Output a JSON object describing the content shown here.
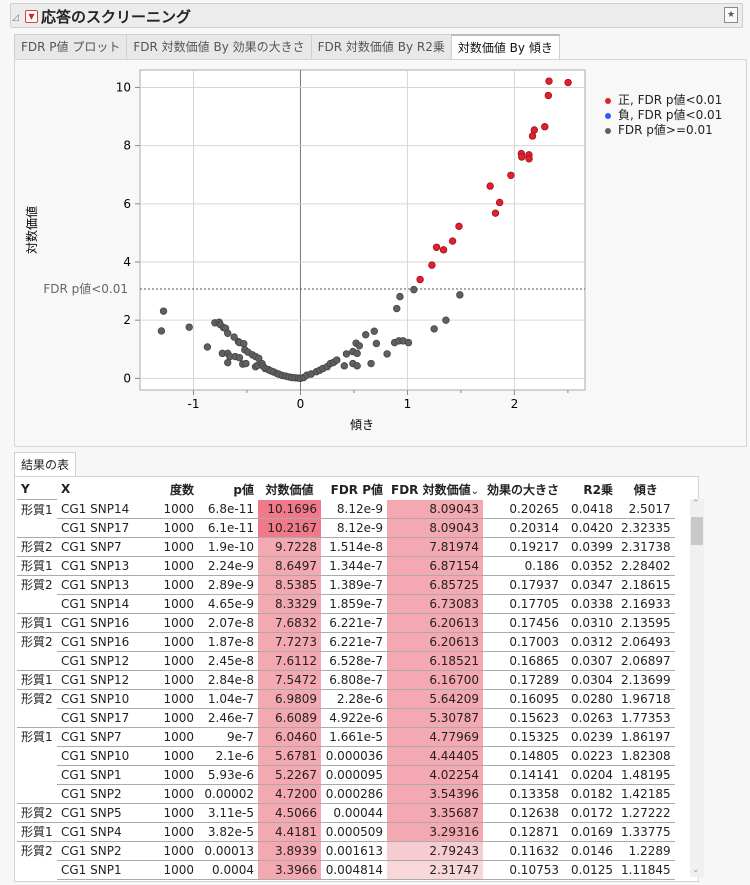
{
  "outline": {
    "title": "応答のスクリーニング",
    "collapse_icon": "triangle-down",
    "menu_icon": "red-triangle"
  },
  "tabs": [
    {
      "label": "FDR P値 プロット"
    },
    {
      "label": "FDR 対数価値 By 効果の大きさ"
    },
    {
      "label": "FDR 対数価値 By R2乗"
    },
    {
      "label": "対数価値 By 傾き",
      "active": true
    }
  ],
  "chart_data": {
    "type": "scatter",
    "xlabel": "傾き",
    "ylabel": "対数価値",
    "xlim": [
      -1.5,
      2.66
    ],
    "ylim": [
      -0.4,
      10.6
    ],
    "xticks": [
      -1,
      0,
      1,
      2
    ],
    "yticks": [
      0,
      2,
      4,
      6,
      8,
      10
    ],
    "grid": true,
    "reference_line": {
      "y": 3.07,
      "label": "FDR p値<0.01"
    },
    "legend_position": "right",
    "series": [
      {
        "name": "正, FDR p値<0.01",
        "color": "#e0202f",
        "points": [
          [
            2.5017,
            10.1696
          ],
          [
            2.32335,
            10.2167
          ],
          [
            2.31738,
            9.7228
          ],
          [
            2.28402,
            8.6497
          ],
          [
            2.18615,
            8.5385
          ],
          [
            2.16933,
            8.3329
          ],
          [
            2.13595,
            7.6832
          ],
          [
            2.06493,
            7.7273
          ],
          [
            2.06897,
            7.6112
          ],
          [
            2.13699,
            7.5472
          ],
          [
            1.96718,
            6.9809
          ],
          [
            1.77353,
            6.6089
          ],
          [
            1.86197,
            6.046
          ],
          [
            1.82308,
            5.6781
          ],
          [
            1.48195,
            5.2267
          ],
          [
            1.42185,
            4.72
          ],
          [
            1.27222,
            4.5066
          ],
          [
            1.33775,
            4.4181
          ],
          [
            1.2289,
            3.8939
          ],
          [
            1.11845,
            3.3966
          ]
        ]
      },
      {
        "name": "負, FDR p値<0.01",
        "color": "#2a5cf0",
        "points": []
      },
      {
        "name": "FDR p値>=0.01",
        "color": "#606060",
        "points": [
          [
            -1.3,
            1.63
          ],
          [
            -1.28,
            2.31
          ],
          [
            -1.04,
            1.76
          ],
          [
            -0.87,
            1.08
          ],
          [
            -0.8,
            1.91
          ],
          [
            -0.76,
            1.93
          ],
          [
            -0.75,
            1.85
          ],
          [
            -0.72,
            1.75
          ],
          [
            -0.7,
            1.72
          ],
          [
            -0.68,
            1.55
          ],
          [
            -0.62,
            1.42
          ],
          [
            -0.58,
            1.26
          ],
          [
            -0.57,
            1.23
          ],
          [
            -0.53,
            1.19
          ],
          [
            -0.73,
            0.86
          ],
          [
            -0.68,
            0.86
          ],
          [
            -0.68,
            0.54
          ],
          [
            -0.66,
            0.75
          ],
          [
            -0.61,
            0.75
          ],
          [
            -0.57,
            0.71
          ],
          [
            -0.54,
            0.49
          ],
          [
            -0.51,
            0.51
          ],
          [
            -0.52,
            0.98
          ],
          [
            -0.49,
            0.9
          ],
          [
            -0.45,
            0.81
          ],
          [
            -0.42,
            0.75
          ],
          [
            -0.39,
            0.69
          ],
          [
            -0.42,
            0.4
          ],
          [
            -0.4,
            0.45
          ],
          [
            -0.36,
            0.51
          ],
          [
            -0.35,
            0.42
          ],
          [
            -0.33,
            0.34
          ],
          [
            -0.3,
            0.3
          ],
          [
            -0.28,
            0.26
          ],
          [
            -0.25,
            0.22
          ],
          [
            -0.22,
            0.17
          ],
          [
            -0.2,
            0.14
          ],
          [
            -0.17,
            0.1
          ],
          [
            -0.14,
            0.08
          ],
          [
            -0.11,
            0.05
          ],
          [
            -0.08,
            0.03
          ],
          [
            -0.05,
            0.02
          ],
          [
            -0.02,
            0.01
          ],
          [
            0.0,
            0.0
          ],
          [
            0.03,
            0.03
          ],
          [
            0.06,
            0.11
          ],
          [
            0.1,
            0.15
          ],
          [
            0.15,
            0.23
          ],
          [
            0.18,
            0.28
          ],
          [
            0.21,
            0.34
          ],
          [
            0.25,
            0.4
          ],
          [
            0.28,
            0.51
          ],
          [
            0.31,
            0.55
          ],
          [
            0.34,
            0.63
          ],
          [
            0.43,
            0.84
          ],
          [
            0.49,
            0.92
          ],
          [
            0.52,
            1.21
          ],
          [
            0.55,
            1.12
          ],
          [
            0.53,
            0.86
          ],
          [
            0.41,
            0.43
          ],
          [
            0.49,
            0.51
          ],
          [
            0.53,
            0.43
          ],
          [
            0.61,
            1.5
          ],
          [
            0.69,
            1.62
          ],
          [
            0.71,
            1.2
          ],
          [
            0.66,
            0.51
          ],
          [
            0.81,
            0.84
          ],
          [
            0.88,
            1.23
          ],
          [
            0.92,
            1.29
          ],
          [
            0.96,
            1.29
          ],
          [
            1.01,
            1.23
          ],
          [
            0.9,
            2.4
          ],
          [
            0.93,
            2.81
          ],
          [
            1.06,
            3.05
          ],
          [
            1.25,
            1.7
          ],
          [
            1.36,
            2.0
          ],
          [
            1.49,
            2.87
          ]
        ]
      }
    ]
  },
  "results": {
    "tab_label": "結果の表",
    "columns": [
      "Y",
      "X",
      "度数",
      "p値",
      "対数価値",
      "FDR P値",
      "FDR 対数価値",
      "効果の大きさ",
      "R2乗",
      "傾き"
    ],
    "sort_indicator": "⌄",
    "rows": [
      {
        "y": "形質1",
        "x": "CG1 SNP14",
        "n": "1000",
        "p": "6.8e-11",
        "lw": "10.1696",
        "fdrp": "8.12e-9",
        "fdrlw": "8.09043",
        "eff": "0.20265",
        "r2": "0.0418",
        "slope": "2.5017"
      },
      {
        "y": "",
        "x": "CG1 SNP17",
        "n": "1000",
        "p": "6.1e-11",
        "lw": "10.2167",
        "fdrp": "8.12e-9",
        "fdrlw": "8.09043",
        "eff": "0.20314",
        "r2": "0.0420",
        "slope": "2.32335"
      },
      {
        "y": "形質2",
        "x": "CG1 SNP7",
        "n": "1000",
        "p": "1.9e-10",
        "lw": "9.7228",
        "fdrp": "1.514e-8",
        "fdrlw": "7.81974",
        "eff": "0.19217",
        "r2": "0.0399",
        "slope": "2.31738"
      },
      {
        "y": "形質1",
        "x": "CG1 SNP13",
        "n": "1000",
        "p": "2.24e-9",
        "lw": "8.6497",
        "fdrp": "1.344e-7",
        "fdrlw": "6.87154",
        "eff": "0.186",
        "r2": "0.0352",
        "slope": "2.28402"
      },
      {
        "y": "形質2",
        "x": "CG1 SNP13",
        "n": "1000",
        "p": "2.89e-9",
        "lw": "8.5385",
        "fdrp": "1.389e-7",
        "fdrlw": "6.85725",
        "eff": "0.17937",
        "r2": "0.0347",
        "slope": "2.18615"
      },
      {
        "y": "",
        "x": "CG1 SNP14",
        "n": "1000",
        "p": "4.65e-9",
        "lw": "8.3329",
        "fdrp": "1.859e-7",
        "fdrlw": "6.73083",
        "eff": "0.17705",
        "r2": "0.0338",
        "slope": "2.16933"
      },
      {
        "y": "形質1",
        "x": "CG1 SNP16",
        "n": "1000",
        "p": "2.07e-8",
        "lw": "7.6832",
        "fdrp": "6.221e-7",
        "fdrlw": "6.20613",
        "eff": "0.17456",
        "r2": "0.0310",
        "slope": "2.13595"
      },
      {
        "y": "形質2",
        "x": "CG1 SNP16",
        "n": "1000",
        "p": "1.87e-8",
        "lw": "7.7273",
        "fdrp": "6.221e-7",
        "fdrlw": "6.20613",
        "eff": "0.17003",
        "r2": "0.0312",
        "slope": "2.06493"
      },
      {
        "y": "",
        "x": "CG1 SNP12",
        "n": "1000",
        "p": "2.45e-8",
        "lw": "7.6112",
        "fdrp": "6.528e-7",
        "fdrlw": "6.18521",
        "eff": "0.16865",
        "r2": "0.0307",
        "slope": "2.06897"
      },
      {
        "y": "形質1",
        "x": "CG1 SNP12",
        "n": "1000",
        "p": "2.84e-8",
        "lw": "7.5472",
        "fdrp": "6.808e-7",
        "fdrlw": "6.16700",
        "eff": "0.17289",
        "r2": "0.0304",
        "slope": "2.13699"
      },
      {
        "y": "形質2",
        "x": "CG1 SNP10",
        "n": "1000",
        "p": "1.04e-7",
        "lw": "6.9809",
        "fdrp": "2.28e-6",
        "fdrlw": "5.64209",
        "eff": "0.16095",
        "r2": "0.0280",
        "slope": "1.96718"
      },
      {
        "y": "",
        "x": "CG1 SNP17",
        "n": "1000",
        "p": "2.46e-7",
        "lw": "6.6089",
        "fdrp": "4.922e-6",
        "fdrlw": "5.30787",
        "eff": "0.15623",
        "r2": "0.0263",
        "slope": "1.77353"
      },
      {
        "y": "形質1",
        "x": "CG1 SNP7",
        "n": "1000",
        "p": "9e-7",
        "lw": "6.0460",
        "fdrp": "1.661e-5",
        "fdrlw": "4.77969",
        "eff": "0.15325",
        "r2": "0.0239",
        "slope": "1.86197"
      },
      {
        "y": "",
        "x": "CG1 SNP10",
        "n": "1000",
        "p": "2.1e-6",
        "lw": "5.6781",
        "fdrp": "0.000036",
        "fdrlw": "4.44405",
        "eff": "0.14805",
        "r2": "0.0223",
        "slope": "1.82308"
      },
      {
        "y": "",
        "x": "CG1 SNP1",
        "n": "1000",
        "p": "5.93e-6",
        "lw": "5.2267",
        "fdrp": "0.000095",
        "fdrlw": "4.02254",
        "eff": "0.14141",
        "r2": "0.0204",
        "slope": "1.48195"
      },
      {
        "y": "",
        "x": "CG1 SNP2",
        "n": "1000",
        "p": "0.00002",
        "lw": "4.7200",
        "fdrp": "0.000286",
        "fdrlw": "3.54396",
        "eff": "0.13358",
        "r2": "0.0182",
        "slope": "1.42185"
      },
      {
        "y": "形質2",
        "x": "CG1 SNP5",
        "n": "1000",
        "p": "3.11e-5",
        "lw": "4.5066",
        "fdrp": "0.00044",
        "fdrlw": "3.35687",
        "eff": "0.12638",
        "r2": "0.0172",
        "slope": "1.27222"
      },
      {
        "y": "形質1",
        "x": "CG1 SNP4",
        "n": "1000",
        "p": "3.82e-5",
        "lw": "4.4181",
        "fdrp": "0.000509",
        "fdrlw": "3.29316",
        "eff": "0.12871",
        "r2": "0.0169",
        "slope": "1.33775"
      },
      {
        "y": "形質2",
        "x": "CG1 SNP2",
        "n": "1000",
        "p": "0.00013",
        "lw": "3.8939",
        "fdrp": "0.001613",
        "fdrlw": "2.79243",
        "eff": "0.11632",
        "r2": "0.0146",
        "slope": "1.2289"
      },
      {
        "y": "",
        "x": "CG1 SNP1",
        "n": "1000",
        "p": "0.0004",
        "lw": "3.3966",
        "fdrp": "0.004814",
        "fdrlw": "2.31747",
        "eff": "0.10753",
        "r2": "0.0125",
        "slope": "1.11845"
      }
    ]
  }
}
